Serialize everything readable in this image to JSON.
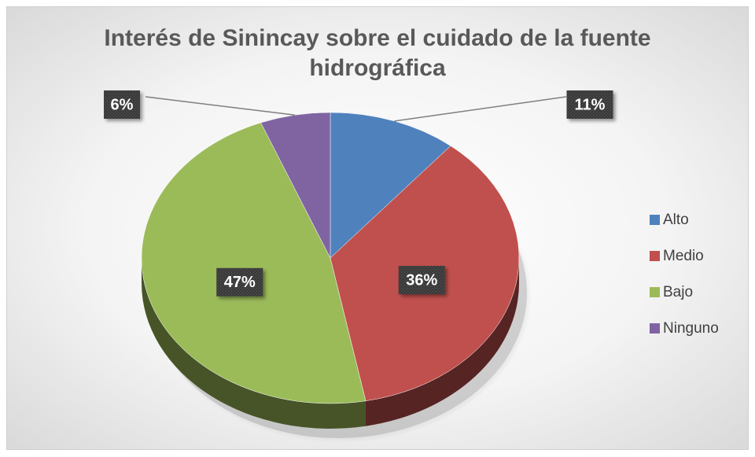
{
  "chart_data": {
    "type": "pie",
    "title": "Interés de Sinincay sobre el cuidado de la fuente hidrográfica",
    "categories": [
      "Alto",
      "Medio",
      "Bajo",
      "Ninguno"
    ],
    "values": [
      11,
      36,
      47,
      6
    ],
    "value_labels": [
      "11%",
      "36%",
      "47%",
      "6%"
    ],
    "colors": [
      "#4f81bd",
      "#c0504d",
      "#9bbb59",
      "#8064a2"
    ],
    "legend": "right"
  }
}
